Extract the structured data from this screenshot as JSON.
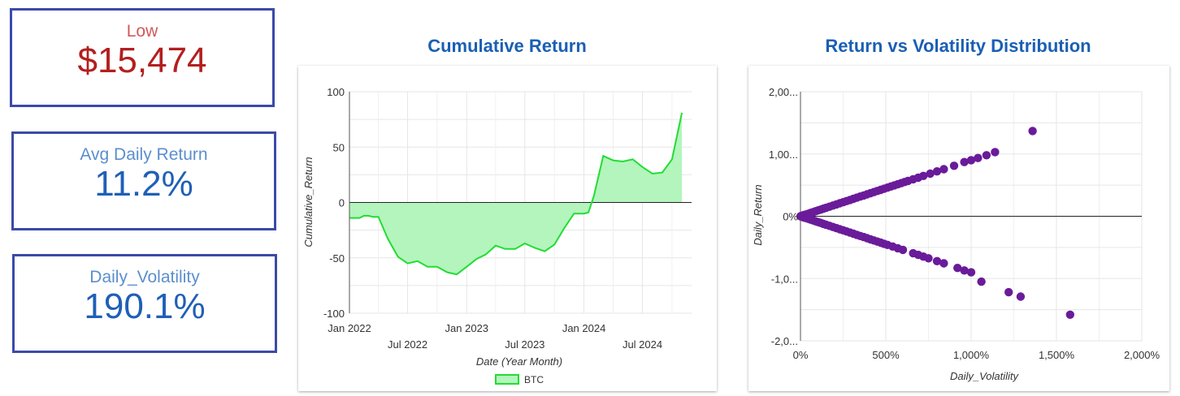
{
  "kpis": {
    "low": {
      "label": "Low",
      "value": "$15,474"
    },
    "avg_daily_return": {
      "label": "Avg Daily Return",
      "value": "11.2%"
    },
    "daily_volatility": {
      "label": "Daily_Volatility",
      "value": "190.1%"
    }
  },
  "colors": {
    "line": "#22dd33",
    "area": "#b3f5bc",
    "scatter": "#6a1b9a",
    "title": "#1a5fb4"
  },
  "chart_data": [
    {
      "type": "area",
      "title": "Cumulative Return",
      "xlabel": "Date (Year Month)",
      "ylabel": "Cumulative_Return",
      "ylim": [
        -100,
        100
      ],
      "yticks": [
        "100",
        "50",
        "0",
        "-50",
        "-100"
      ],
      "xticks_upper": [
        "Jan 2022",
        "Jan 2023",
        "Jan 2024"
      ],
      "xticks_lower": [
        "Jul 2022",
        "Jul 2023",
        "Jul 2024"
      ],
      "grid": true,
      "legend": "bottom",
      "series": [
        {
          "name": "BTC",
          "x": [
            "2022-01",
            "2022-01-15",
            "2022-02",
            "2022-02-15",
            "2022-03",
            "2022-03-15",
            "2022-04",
            "2022-05",
            "2022-06",
            "2022-07",
            "2022-08",
            "2022-09",
            "2022-10",
            "2022-11",
            "2022-12",
            "2023-01",
            "2023-02",
            "2023-03",
            "2023-04",
            "2023-05",
            "2023-06",
            "2023-07",
            "2023-08",
            "2023-09",
            "2023-10",
            "2023-11",
            "2023-12",
            "2024-01",
            "2024-01-15",
            "2024-02",
            "2024-03",
            "2024-04",
            "2024-05",
            "2024-06",
            "2024-07",
            "2024-08",
            "2024-09",
            "2024-10",
            "2024-11"
          ],
          "values": [
            -14,
            -14,
            -14,
            -12,
            -12,
            -13,
            -13,
            -33,
            -49,
            -55,
            -53,
            -58,
            -58,
            -63,
            -65,
            -58,
            -51,
            -47,
            -39,
            -42,
            -42,
            -37,
            -41,
            -44,
            -38,
            -23,
            -10,
            -10,
            -9,
            6,
            42,
            38,
            37,
            39,
            32,
            26,
            27,
            39,
            81
          ]
        }
      ]
    },
    {
      "type": "scatter",
      "title": "Return vs Volatility Distribution",
      "xlabel": "Daily_Volatility",
      "ylabel": "Daily_Return",
      "xticks": [
        "0%",
        "500%",
        "1,000%",
        "1,500%",
        "2,000%"
      ],
      "yticks": [
        "2,00...",
        "1,00...",
        "0%",
        "-1,0...",
        "-2,0..."
      ],
      "xlim": [
        0,
        2000
      ],
      "ylim": [
        -2000,
        2000
      ],
      "grid": true,
      "points": [
        [
          0,
          0
        ],
        [
          10,
          10
        ],
        [
          20,
          18
        ],
        [
          30,
          28
        ],
        [
          45,
          40
        ],
        [
          60,
          55
        ],
        [
          75,
          68
        ],
        [
          90,
          82
        ],
        [
          105,
          95
        ],
        [
          120,
          108
        ],
        [
          135,
          122
        ],
        [
          150,
          136
        ],
        [
          170,
          154
        ],
        [
          190,
          172
        ],
        [
          210,
          190
        ],
        [
          230,
          208
        ],
        [
          250,
          226
        ],
        [
          270,
          244
        ],
        [
          290,
          262
        ],
        [
          310,
          280
        ],
        [
          330,
          298
        ],
        [
          350,
          316
        ],
        [
          370,
          334
        ],
        [
          390,
          352
        ],
        [
          410,
          370
        ],
        [
          430,
          388
        ],
        [
          450,
          406
        ],
        [
          470,
          424
        ],
        [
          490,
          442
        ],
        [
          510,
          460
        ],
        [
          530,
          478
        ],
        [
          550,
          496
        ],
        [
          570,
          514
        ],
        [
          590,
          532
        ],
        [
          610,
          550
        ],
        [
          630,
          568
        ],
        [
          660,
          594
        ],
        [
          690,
          620
        ],
        [
          720,
          648
        ],
        [
          760,
          684
        ],
        [
          800,
          720
        ],
        [
          840,
          756
        ],
        [
          900,
          810
        ],
        [
          960,
          870
        ],
        [
          1000,
          900
        ],
        [
          1040,
          935
        ],
        [
          1090,
          980
        ],
        [
          1140,
          1030
        ],
        [
          1360,
          1370
        ],
        [
          10,
          -10
        ],
        [
          20,
          -18
        ],
        [
          30,
          -28
        ],
        [
          45,
          -40
        ],
        [
          60,
          -55
        ],
        [
          75,
          -68
        ],
        [
          90,
          -82
        ],
        [
          105,
          -95
        ],
        [
          120,
          -108
        ],
        [
          135,
          -122
        ],
        [
          150,
          -136
        ],
        [
          170,
          -154
        ],
        [
          190,
          -172
        ],
        [
          210,
          -190
        ],
        [
          230,
          -208
        ],
        [
          250,
          -226
        ],
        [
          270,
          -244
        ],
        [
          290,
          -262
        ],
        [
          310,
          -280
        ],
        [
          330,
          -298
        ],
        [
          350,
          -316
        ],
        [
          370,
          -334
        ],
        [
          390,
          -352
        ],
        [
          410,
          -370
        ],
        [
          430,
          -388
        ],
        [
          450,
          -406
        ],
        [
          470,
          -424
        ],
        [
          490,
          -442
        ],
        [
          510,
          -460
        ],
        [
          540,
          -486
        ],
        [
          570,
          -514
        ],
        [
          600,
          -540
        ],
        [
          660,
          -594
        ],
        [
          690,
          -620
        ],
        [
          720,
          -648
        ],
        [
          750,
          -675
        ],
        [
          800,
          -720
        ],
        [
          840,
          -756
        ],
        [
          920,
          -830
        ],
        [
          960,
          -870
        ],
        [
          1000,
          -900
        ],
        [
          1060,
          -1050
        ],
        [
          1220,
          -1220
        ],
        [
          1290,
          -1290
        ],
        [
          1580,
          -1580
        ]
      ]
    }
  ],
  "legend": {
    "btc": "BTC"
  }
}
